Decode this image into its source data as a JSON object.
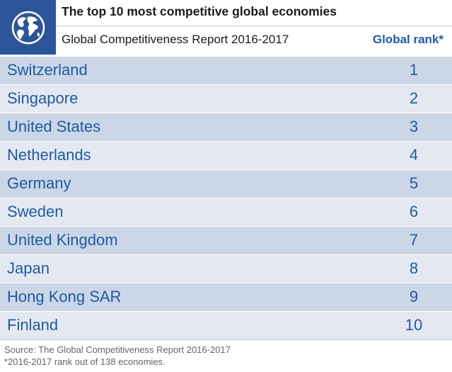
{
  "header": {
    "title": "The top 10 most competitive global economies",
    "subtitle": "Global Competitiveness Report 2016-2017",
    "rank_column_label": "Global rank*"
  },
  "colors": {
    "brand_blue": "#2a5598",
    "text_blue": "#1f5aa6",
    "row_dark": "#cbd6e6",
    "row_light": "#e4e9f1"
  },
  "icons": {
    "logo": "globe-icon"
  },
  "chart_data": {
    "type": "table",
    "title": "The top 10 most competitive global economies",
    "subtitle": "Global Competitiveness Report 2016-2017",
    "columns": [
      "",
      "Global rank*"
    ],
    "rows": [
      {
        "country": "Switzerland",
        "rank": 1
      },
      {
        "country": "Singapore",
        "rank": 2
      },
      {
        "country": "United States",
        "rank": 3
      },
      {
        "country": "Netherlands",
        "rank": 4
      },
      {
        "country": "Germany",
        "rank": 5
      },
      {
        "country": "Sweden",
        "rank": 6
      },
      {
        "country": "United Kingdom",
        "rank": 7
      },
      {
        "country": "Japan",
        "rank": 8
      },
      {
        "country": "Hong Kong SAR",
        "rank": 9
      },
      {
        "country": "Finland",
        "rank": 10
      }
    ]
  },
  "footer": {
    "source": "Source: The Global Competitiveness Report 2016-2017",
    "note": "*2016-2017 rank out of 138 economies."
  }
}
